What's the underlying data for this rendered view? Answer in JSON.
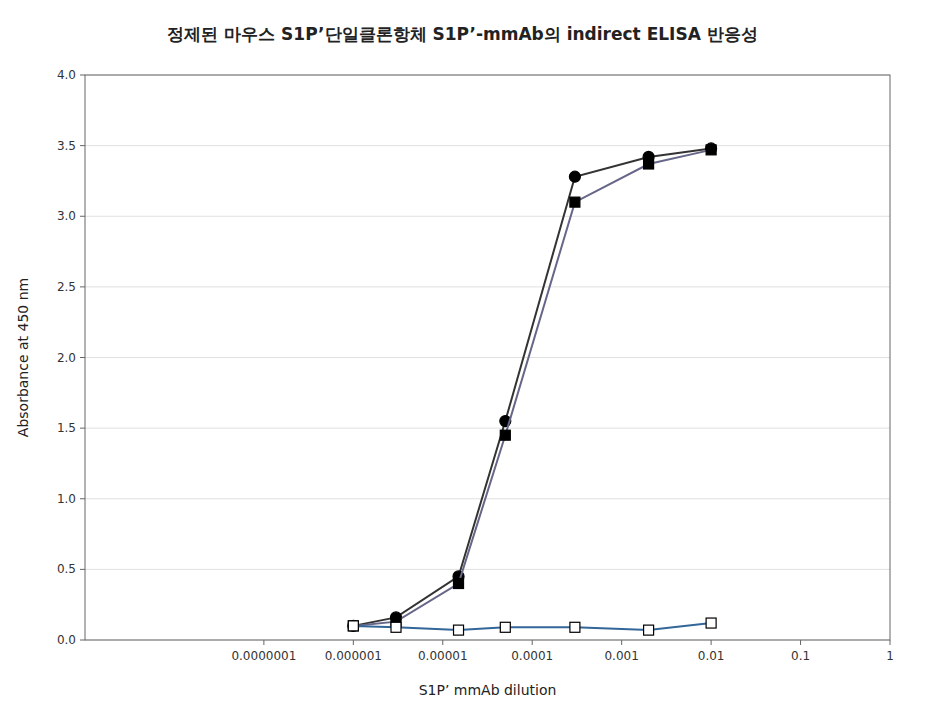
{
  "chart_data": {
    "type": "line",
    "title": "정제된 마우스 S1P’단일클론항체 S1P’-mmAb의  indirect ELISA 반응성",
    "xlabel": "S1P’ mmAb dilution",
    "ylabel": "Absorbance at 450 nm",
    "log": "x",
    "grid": "y",
    "x": [
      1e-06,
      3e-06,
      1.5e-05,
      5e-05,
      0.0003,
      0.002,
      0.01
    ],
    "series": [
      {
        "color": "#333333",
        "marker": "circle",
        "values": [
          0.1,
          0.16,
          0.45,
          1.55,
          3.28,
          3.42,
          3.48
        ]
      },
      {
        "color": "#666688",
        "marker": "square",
        "values": [
          0.1,
          0.13,
          0.4,
          1.45,
          3.1,
          3.37,
          3.47
        ]
      },
      {
        "color": "#336699",
        "marker": "square-open",
        "values": [
          0.1,
          0.09,
          0.07,
          0.09,
          0.09,
          0.07,
          0.12
        ]
      }
    ],
    "xlim": [
      1e-09,
      1
    ],
    "xticks": [
      {
        "value": 1e-07,
        "label": "0.0000001"
      },
      1e-06,
      1e-05,
      0.0001,
      0.001,
      0.01,
      0.1,
      1
    ],
    "ylim": [
      0,
      4
    ],
    "yticks": [
      {
        "value": 0,
        "label": "0.0"
      },
      0.5,
      {
        "value": 1.0,
        "label": "1.0"
      },
      1.5,
      {
        "value": 2.0,
        "label": "2.0"
      },
      2.5,
      {
        "value": 3.0,
        "label": "3.0"
      },
      3.5,
      {
        "value": 4.0,
        "label": "4.0"
      }
    ]
  }
}
